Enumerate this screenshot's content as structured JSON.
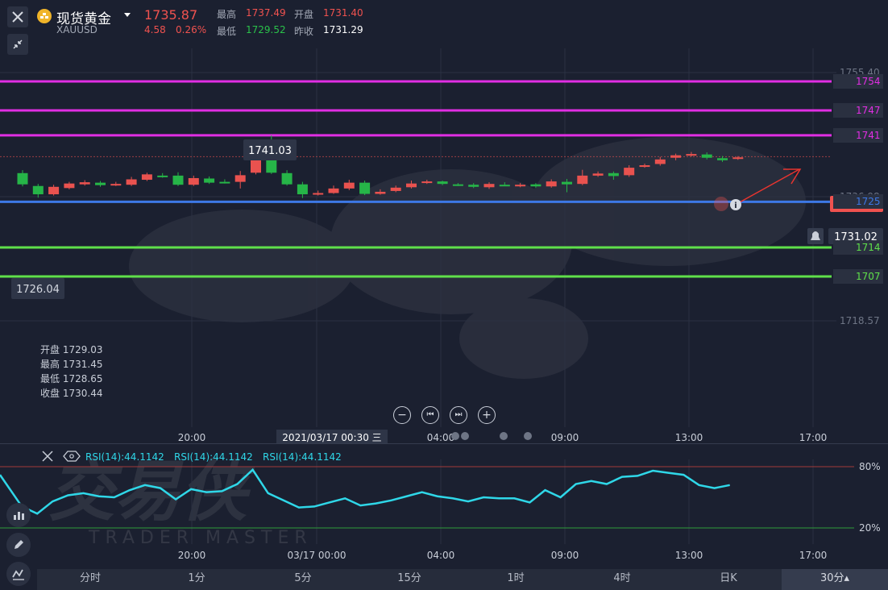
{
  "header": {
    "symbol_name": "现货黄金",
    "symbol_code": "XAUUSD",
    "last_price": "1735.87",
    "change": "4.58",
    "change_pct": "0.26%",
    "high_label": "最高",
    "high_value": "1737.49",
    "open_label": "开盘",
    "open_value": "1731.40",
    "low_label": "最低",
    "low_value": "1729.52",
    "prev_close_label": "昨收",
    "prev_close_value": "1731.29"
  },
  "price_axis": {
    "ticks": [
      "1755.40",
      "1736.98",
      "1718.57"
    ],
    "current_price_tag": "1735.87",
    "alert_price": "1731.02"
  },
  "horizontal_lines": [
    {
      "label": "1754",
      "price": 1754,
      "color": "#e12ee3"
    },
    {
      "label": "1747",
      "price": 1747,
      "color": "#e12ee3"
    },
    {
      "label": "1741",
      "price": 1741,
      "color": "#e12ee3"
    },
    {
      "label": "1725",
      "price": 1725,
      "color": "#3d78e6"
    },
    {
      "label": "1714",
      "price": 1714,
      "color": "#5fe04a"
    },
    {
      "label": "1707",
      "price": 1707,
      "color": "#5fe04a"
    }
  ],
  "annotations": {
    "max_label": "1741.03",
    "min_label": "1726.04"
  },
  "crosshair_info": {
    "open_label": "开盘",
    "open_value": "1729.03",
    "high_label": "最高",
    "high_value": "1731.45",
    "low_label": "最低",
    "low_value": "1728.65",
    "close_label": "收盘",
    "close_value": "1730.44"
  },
  "time_axis": {
    "labels": [
      "20:00",
      "04:00",
      "09:00",
      "13:00",
      "17:00"
    ],
    "crosshair_time": "2021/03/17 00:30 三",
    "rsi_labels": [
      "20:00",
      "03/17 00:00",
      "04:00",
      "09:00",
      "13:00",
      "17:00"
    ]
  },
  "controls": {
    "zoom_out": "−",
    "prev": "⏮",
    "next": "⏭",
    "zoom_in": "+"
  },
  "rsi": {
    "label1": "RSI(14):44.1142",
    "label2": "RSI(14):44.1142",
    "label3": "RSI(14):44.1142",
    "level_high": "80%",
    "level_low": "20%",
    "values": [
      72,
      41,
      34,
      46,
      52,
      54,
      51,
      50,
      57,
      62,
      59,
      48,
      58,
      55,
      56,
      63,
      77,
      54,
      47,
      40,
      41,
      45,
      49,
      42,
      44,
      47,
      51,
      55,
      51,
      49,
      46,
      50,
      49,
      49,
      45,
      57,
      50,
      63,
      66,
      63,
      70,
      71,
      76,
      74,
      72,
      62,
      59,
      62
    ]
  },
  "watermark": {
    "title": "交易侠",
    "subtitle": "TRADER MASTER"
  },
  "chart_data": {
    "type": "candlestick",
    "series": [
      {
        "name": "XAUUSD",
        "ohlc": [
          [
            1731.9,
            1729.2,
            1732.6,
            1728.7
          ],
          [
            1728.8,
            1726.8,
            1729.3,
            1726.0
          ],
          [
            1726.8,
            1728.6,
            1729.1,
            1726.5
          ],
          [
            1728.3,
            1729.4,
            1729.8,
            1728.0
          ],
          [
            1729.2,
            1729.7,
            1730.2,
            1728.9
          ],
          [
            1729.6,
            1729.0,
            1730.0,
            1728.6
          ],
          [
            1729.1,
            1729.3,
            1729.8,
            1728.8
          ],
          [
            1729.1,
            1730.4,
            1731.0,
            1728.8
          ],
          [
            1730.3,
            1731.6,
            1732.0,
            1730.0
          ],
          [
            1731.3,
            1731.2,
            1731.9,
            1730.8
          ],
          [
            1731.3,
            1729.1,
            1732.1,
            1728.8
          ],
          [
            1729.1,
            1730.7,
            1731.3,
            1728.8
          ],
          [
            1730.6,
            1729.6,
            1731.1,
            1729.3
          ],
          [
            1729.8,
            1729.7,
            1730.4,
            1729.4
          ],
          [
            1729.8,
            1731.4,
            1732.4,
            1728.2
          ],
          [
            1732.0,
            1736.2,
            1737.3,
            1731.6
          ],
          [
            1736.4,
            1732.0,
            1741.0,
            1731.7
          ],
          [
            1731.9,
            1729.2,
            1732.6,
            1728.9
          ],
          [
            1729.2,
            1726.8,
            1729.8,
            1725.9
          ],
          [
            1726.8,
            1727.1,
            1727.7,
            1726.5
          ],
          [
            1727.1,
            1728.2,
            1728.9,
            1726.9
          ],
          [
            1728.2,
            1729.6,
            1730.3,
            1727.8
          ],
          [
            1729.6,
            1726.9,
            1730.1,
            1726.6
          ],
          [
            1726.9,
            1727.4,
            1728.0,
            1726.7
          ],
          [
            1727.6,
            1728.4,
            1728.9,
            1727.3
          ],
          [
            1728.5,
            1729.4,
            1730.1,
            1728.2
          ],
          [
            1729.6,
            1729.9,
            1730.3,
            1729.3
          ],
          [
            1729.9,
            1729.3,
            1730.1,
            1729.0
          ],
          [
            1729.2,
            1729.1,
            1729.5,
            1728.8
          ],
          [
            1729.1,
            1728.6,
            1729.5,
            1728.3
          ],
          [
            1728.5,
            1729.3,
            1729.7,
            1728.1
          ],
          [
            1729.1,
            1729.0,
            1729.7,
            1728.8
          ],
          [
            1729.0,
            1729.1,
            1729.5,
            1728.5
          ],
          [
            1729.2,
            1728.7,
            1729.5,
            1728.4
          ],
          [
            1728.7,
            1729.9,
            1730.4,
            1728.4
          ],
          [
            1729.8,
            1729.2,
            1730.5,
            1727.3
          ],
          [
            1729.3,
            1731.3,
            1732.7,
            1729.0
          ],
          [
            1731.3,
            1731.8,
            1732.3,
            1731.0
          ],
          [
            1731.9,
            1731.2,
            1732.3,
            1730.3
          ],
          [
            1731.4,
            1733.2,
            1733.8,
            1731.0
          ],
          [
            1733.4,
            1733.8,
            1734.2,
            1733.2
          ],
          [
            1734.1,
            1735.2,
            1735.8,
            1733.7
          ],
          [
            1735.6,
            1736.2,
            1736.6,
            1735.0
          ],
          [
            1736.4,
            1736.5,
            1737.0,
            1735.9
          ],
          [
            1736.4,
            1735.6,
            1736.9,
            1735.2
          ],
          [
            1735.5,
            1735.0,
            1736.0,
            1734.6
          ],
          [
            1735.4,
            1735.7,
            1736.0,
            1735.1
          ]
        ]
      }
    ],
    "ylim": [
      1700,
      1757
    ],
    "horizontal_levels": [
      1754,
      1747,
      1741,
      1725,
      1714,
      1707
    ]
  }
}
